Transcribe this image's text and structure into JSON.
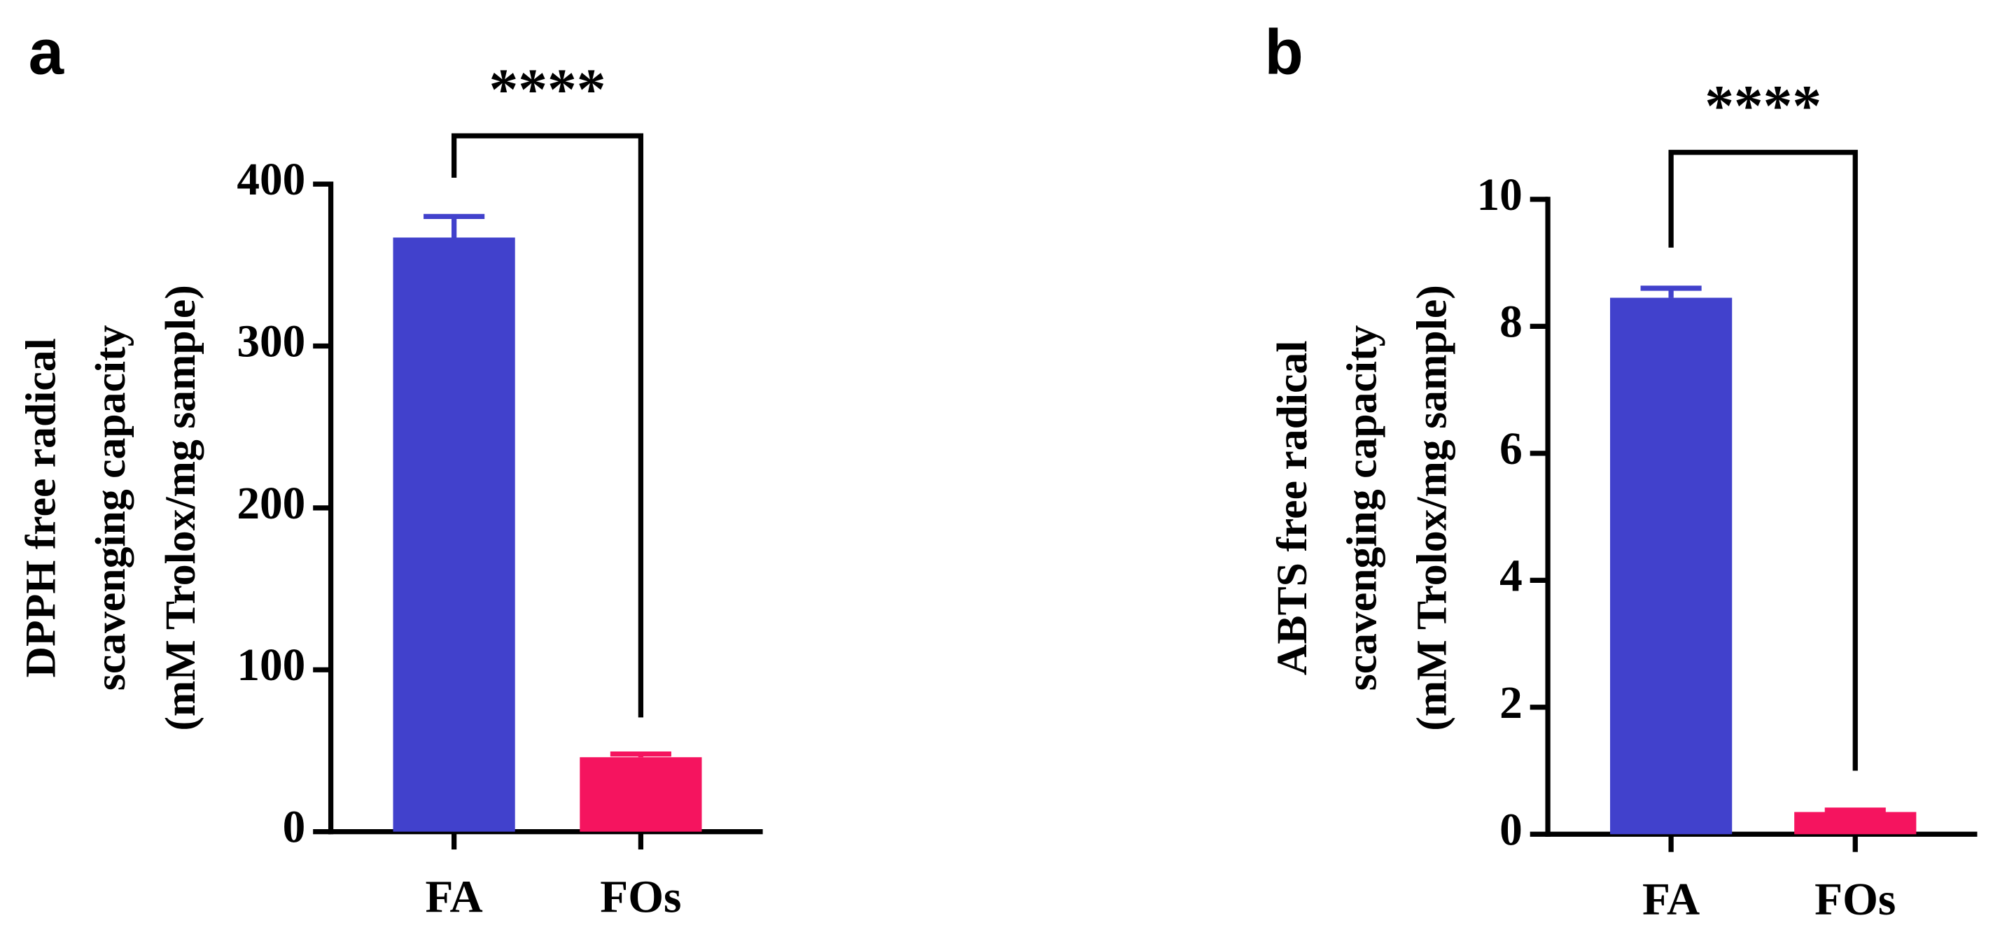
{
  "chart_data": [
    {
      "type": "bar",
      "panel_label": "a",
      "ylabel": [
        "DPPH free radical",
        "scavenging capacity",
        "(mM Trolox/mg sample)"
      ],
      "categories": [
        "FA",
        "FOs"
      ],
      "values": [
        367,
        46
      ],
      "errors": [
        13,
        2
      ],
      "colors": [
        "#4141cc",
        "#f5145f"
      ],
      "ylim": [
        0,
        400
      ],
      "yticks": [
        0,
        100,
        200,
        300,
        400
      ],
      "annotation": "****"
    },
    {
      "type": "bar",
      "panel_label": "b",
      "ylabel": [
        "ABTS free radical",
        "scavenging capacity",
        "(mM Trolox/mg sample)"
      ],
      "categories": [
        "FA",
        "FOs"
      ],
      "values": [
        8.45,
        0.35
      ],
      "errors": [
        0.15,
        0.03
      ],
      "colors": [
        "#4141cc",
        "#f5145f"
      ],
      "ylim": [
        0,
        10
      ],
      "yticks": [
        0,
        2,
        4,
        6,
        8,
        10
      ],
      "annotation": "****"
    }
  ]
}
